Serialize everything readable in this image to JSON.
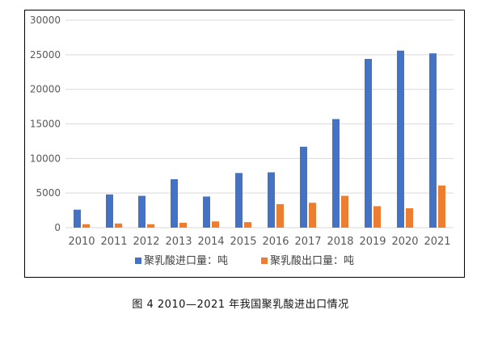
{
  "caption": "图 4  2010—2021 年我国聚乳酸进出口情况",
  "chart_data": {
    "type": "bar",
    "categories": [
      "2010",
      "2011",
      "2012",
      "2013",
      "2014",
      "2015",
      "2016",
      "2017",
      "2018",
      "2019",
      "2020",
      "2021"
    ],
    "series": [
      {
        "name": "聚乳酸进口量：吨",
        "color": "#4472c4",
        "values": [
          2600,
          4800,
          4600,
          7000,
          4500,
          7900,
          8000,
          11700,
          15700,
          24400,
          25600,
          25200
        ]
      },
      {
        "name": "聚乳酸出口量：吨",
        "color": "#ed7d31",
        "values": [
          500,
          600,
          500,
          700,
          900,
          800,
          3400,
          3600,
          4600,
          3100,
          2800,
          6100
        ]
      }
    ],
    "ylim": [
      0,
      30000
    ],
    "yticks": [
      0,
      5000,
      10000,
      15000,
      20000,
      25000,
      30000
    ],
    "ytick_labels": [
      "0",
      "5000",
      "10000",
      "15000",
      "20000",
      "25000",
      "30000"
    ],
    "grid": true,
    "legend_position": "bottom"
  }
}
